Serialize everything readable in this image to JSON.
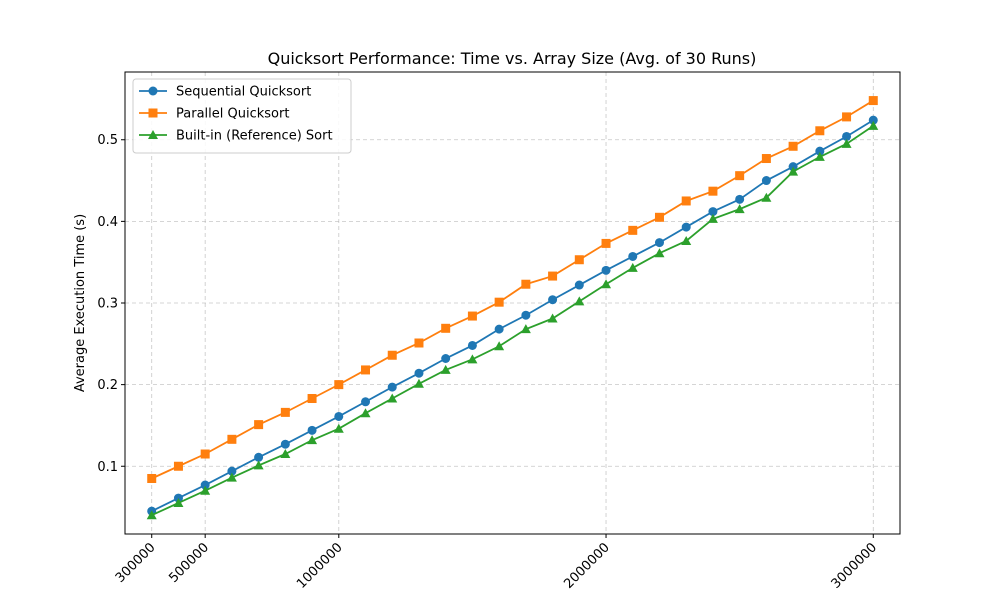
{
  "chart_data": {
    "type": "line",
    "title": "Quicksort Performance: Time vs. Array Size (Avg. of 30 Runs)",
    "xlabel": "",
    "ylabel": "Average Execution Time (s)",
    "xlim": [
      200000,
      3100000
    ],
    "ylim": [
      0.017,
      0.583
    ],
    "xticks": [
      300000,
      500000,
      1000000,
      2000000,
      3000000
    ],
    "xtick_labels": [
      "300000",
      "500000",
      "1000000",
      "2000000",
      "3000000"
    ],
    "yticks": [
      0.1,
      0.2,
      0.3,
      0.4,
      0.5
    ],
    "ytick_labels": [
      "0.1",
      "0.2",
      "0.3",
      "0.4",
      "0.5"
    ],
    "grid": true,
    "legend_position": "top-left",
    "x": [
      300000,
      400000,
      500000,
      600000,
      700000,
      800000,
      900000,
      1000000,
      1100000,
      1200000,
      1300000,
      1400000,
      1500000,
      1600000,
      1700000,
      1800000,
      1900000,
      2000000,
      2100000,
      2200000,
      2300000,
      2400000,
      2500000,
      2600000,
      2700000,
      2800000,
      2900000,
      3000000
    ],
    "series": [
      {
        "name": "Sequential Quicksort",
        "color": "#1f77b4",
        "marker": "circle",
        "values": [
          0.045,
          0.061,
          0.077,
          0.094,
          0.111,
          0.127,
          0.144,
          0.161,
          0.179,
          0.197,
          0.214,
          0.232,
          0.248,
          0.268,
          0.285,
          0.304,
          0.322,
          0.34,
          0.357,
          0.374,
          0.393,
          0.412,
          0.427,
          0.45,
          0.467,
          0.486,
          0.504,
          0.524
        ]
      },
      {
        "name": "Parallel Quicksort",
        "color": "#ff7f0e",
        "marker": "square",
        "values": [
          0.085,
          0.1,
          0.115,
          0.133,
          0.151,
          0.166,
          0.183,
          0.2,
          0.218,
          0.236,
          0.251,
          0.269,
          0.284,
          0.301,
          0.323,
          0.333,
          0.353,
          0.373,
          0.389,
          0.405,
          0.425,
          0.437,
          0.456,
          0.477,
          0.492,
          0.511,
          0.528,
          0.548
        ]
      },
      {
        "name": "Built-in (Reference) Sort",
        "color": "#2ca02c",
        "marker": "triangle",
        "values": [
          0.04,
          0.055,
          0.07,
          0.086,
          0.101,
          0.115,
          0.132,
          0.146,
          0.165,
          0.183,
          0.201,
          0.218,
          0.231,
          0.247,
          0.268,
          0.281,
          0.302,
          0.323,
          0.343,
          0.361,
          0.376,
          0.403,
          0.415,
          0.429,
          0.461,
          0.479,
          0.495,
          0.517
        ]
      }
    ]
  }
}
